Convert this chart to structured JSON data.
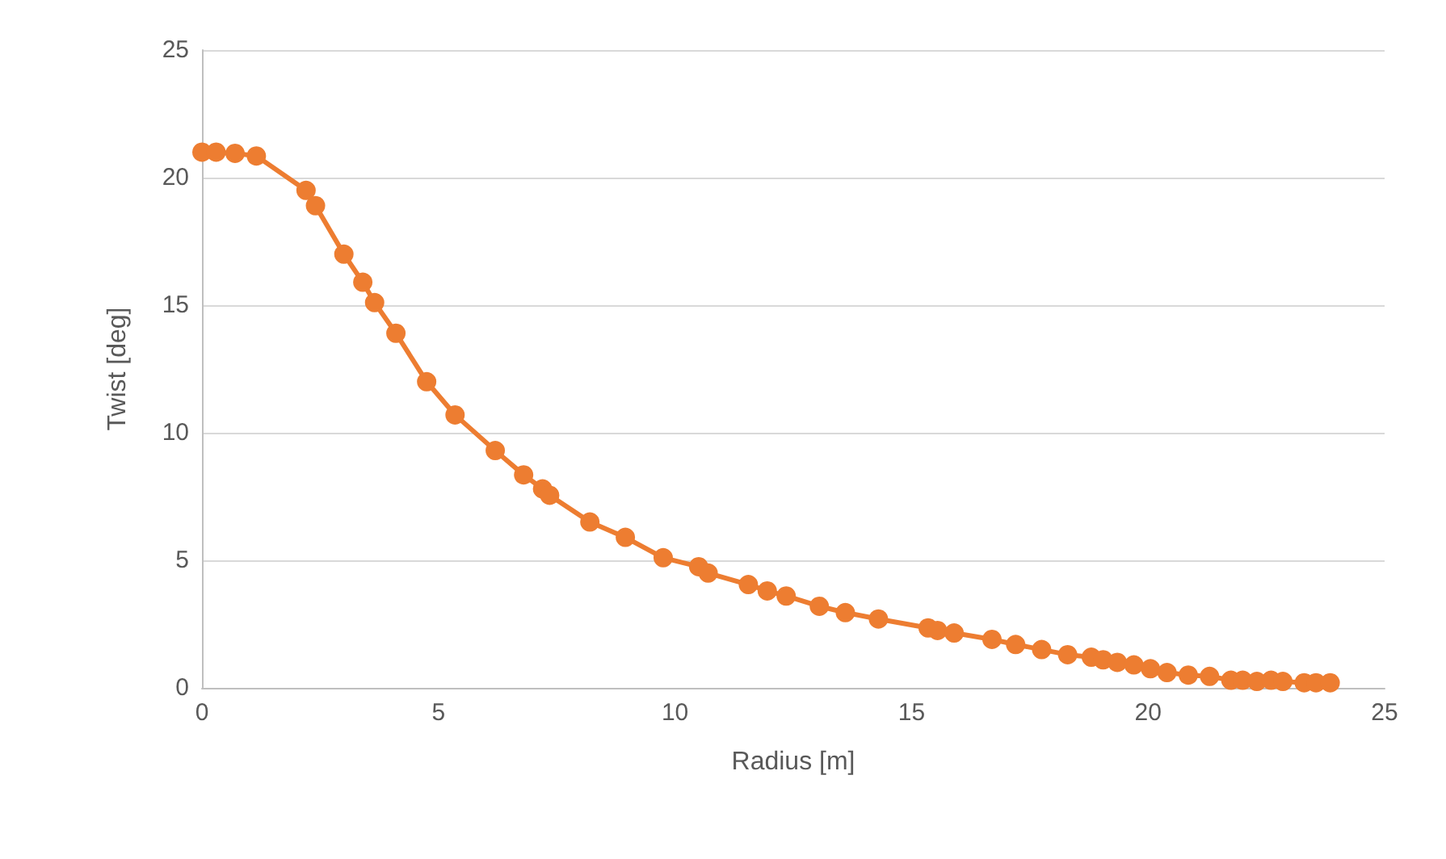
{
  "chart_data": {
    "type": "line",
    "xlabel": "Radius [m]",
    "ylabel": "Twist [deg]",
    "xlim": [
      0,
      25
    ],
    "xticks": [
      0,
      5,
      10,
      15,
      20,
      25
    ],
    "ylim": [
      0,
      25
    ],
    "yticks": [
      0,
      5,
      10,
      15,
      20,
      25
    ],
    "grid": "y",
    "marker": "circle",
    "line_style": "solid",
    "series": [
      {
        "color": "#ed7d31",
        "x": [
          0,
          0.3,
          0.7,
          1.15,
          2.2,
          2.4,
          3.0,
          3.4,
          3.65,
          4.1,
          4.75,
          5.35,
          6.2,
          6.8,
          7.2,
          7.35,
          8.2,
          8.95,
          9.75,
          10.5,
          10.7,
          11.55,
          11.95,
          12.35,
          13.05,
          13.6,
          14.3,
          15.35,
          15.55,
          15.9,
          16.7,
          17.2,
          17.75,
          18.3,
          18.8,
          19.05,
          19.35,
          19.7,
          20.05,
          20.4,
          20.85,
          21.3,
          21.75,
          22.0,
          22.3,
          22.6,
          22.85,
          23.3,
          23.55,
          23.85
        ],
        "values": [
          21.0,
          21.0,
          20.95,
          20.85,
          19.5,
          18.9,
          17.0,
          15.9,
          15.1,
          13.9,
          12.0,
          10.7,
          9.3,
          8.35,
          7.8,
          7.55,
          6.5,
          5.9,
          5.1,
          4.75,
          4.5,
          4.05,
          3.8,
          3.6,
          3.2,
          2.95,
          2.7,
          2.35,
          2.25,
          2.15,
          1.9,
          1.7,
          1.5,
          1.3,
          1.2,
          1.1,
          1.0,
          0.9,
          0.75,
          0.6,
          0.5,
          0.45,
          0.3,
          0.3,
          0.25,
          0.3,
          0.25,
          0.2,
          0.2,
          0.2
        ]
      }
    ]
  }
}
